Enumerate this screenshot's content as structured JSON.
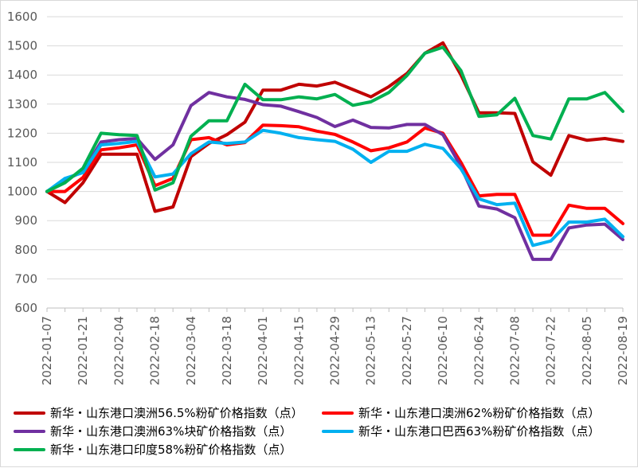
{
  "chart_data": {
    "type": "line",
    "title": "",
    "xlabel": "",
    "ylabel": "",
    "ylim": [
      600,
      1600
    ],
    "yticks": [
      600,
      700,
      800,
      900,
      1000,
      1100,
      1200,
      1300,
      1400,
      1500,
      1600
    ],
    "xtick_labels": [
      "2022-01-07",
      "2022-01-21",
      "2022-02-04",
      "2022-02-18",
      "2022-03-04",
      "2022-03-18",
      "2022-04-01",
      "2022-04-15",
      "2022-04-29",
      "2022-05-13",
      "2022-05-27",
      "2022-06-10",
      "2022-06-24",
      "2022-07-08",
      "2022-07-22",
      "2022-08-05",
      "2022-08-19"
    ],
    "x": [
      "2022-01-07",
      "2022-01-14",
      "2022-01-21",
      "2022-01-28",
      "2022-02-04",
      "2022-02-11",
      "2022-02-18",
      "2022-02-25",
      "2022-03-04",
      "2022-03-11",
      "2022-03-18",
      "2022-03-25",
      "2022-04-01",
      "2022-04-08",
      "2022-04-15",
      "2022-04-22",
      "2022-04-29",
      "2022-05-06",
      "2022-05-13",
      "2022-05-20",
      "2022-05-27",
      "2022-06-03",
      "2022-06-10",
      "2022-06-17",
      "2022-06-24",
      "2022-07-01",
      "2022-07-08",
      "2022-07-15",
      "2022-07-22",
      "2022-07-29",
      "2022-08-05",
      "2022-08-12",
      "2022-08-19"
    ],
    "grid": "horizontal",
    "legend_position": "bottom",
    "series": [
      {
        "name": "新华・山东港口澳洲56.5%粉矿价格指数（点）",
        "color": "#c00000",
        "values": [
          1000,
          962,
          1030,
          1128,
          1128,
          1128,
          932,
          947,
          1120,
          1165,
          1195,
          1238,
          1348,
          1348,
          1368,
          1362,
          1375,
          1350,
          1325,
          1360,
          1405,
          1475,
          1510,
          1400,
          1270,
          1270,
          1268,
          1102,
          1056,
          1192,
          1176,
          1182,
          1172
        ]
      },
      {
        "name": "新华・山东港口澳洲62%粉矿价格指数（点）",
        "color": "#ff0000",
        "values": [
          1000,
          1000,
          1048,
          1143,
          1150,
          1160,
          1020,
          1045,
          1178,
          1185,
          1160,
          1168,
          1228,
          1226,
          1222,
          1207,
          1196,
          1170,
          1140,
          1150,
          1170,
          1218,
          1200,
          1100,
          985,
          990,
          990,
          850,
          850,
          953,
          942,
          942,
          890
        ]
      },
      {
        "name": "新华・山东港口澳洲63%块矿价格指数（点）",
        "color": "#7030a0",
        "values": [
          1000,
          1040,
          1068,
          1170,
          1178,
          1182,
          1110,
          1160,
          1295,
          1340,
          1325,
          1316,
          1298,
          1293,
          1274,
          1254,
          1223,
          1245,
          1220,
          1218,
          1230,
          1230,
          1195,
          1085,
          950,
          940,
          910,
          767,
          767,
          875,
          885,
          888,
          835
        ]
      },
      {
        "name": "新华・山东港口巴西63%粉矿价格指数（点）",
        "color": "#00b0f0",
        "values": [
          1000,
          1045,
          1065,
          1160,
          1165,
          1172,
          1050,
          1060,
          1130,
          1170,
          1165,
          1170,
          1210,
          1200,
          1185,
          1178,
          1172,
          1145,
          1100,
          1138,
          1138,
          1162,
          1148,
          1078,
          975,
          955,
          960,
          815,
          830,
          895,
          895,
          905,
          845
        ]
      },
      {
        "name": "新华・山东港口印度58%粉矿价格指数（点）",
        "color": "#00b050",
        "values": [
          1000,
          1030,
          1080,
          1200,
          1195,
          1192,
          1005,
          1030,
          1190,
          1243,
          1243,
          1368,
          1315,
          1315,
          1325,
          1318,
          1333,
          1296,
          1308,
          1340,
          1398,
          1475,
          1495,
          1415,
          1258,
          1263,
          1320,
          1192,
          1180,
          1318,
          1318,
          1340,
          1275
        ]
      }
    ]
  }
}
